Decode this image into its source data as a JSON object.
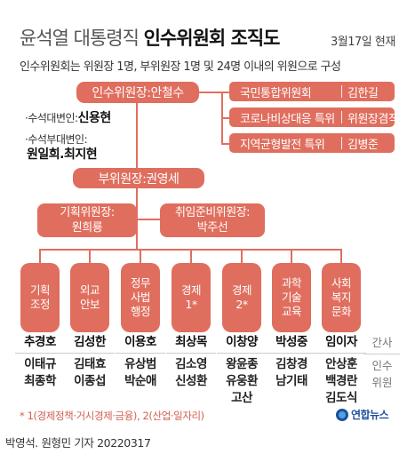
{
  "header": {
    "title_light": "윤석열 대통령직",
    "title_bold": "인수위원회 조직도",
    "date": "3월17일 현재",
    "subtitle": "인수위원회는 위원장 1명, 부위원장 1명 및 24명 이내의 위원으로 구성"
  },
  "chairman": "인수위원장:안철수",
  "side_committees": [
    {
      "name": "국민통합위원회",
      "head": "김한길"
    },
    {
      "name": "코로나비상대응 특위",
      "head": "위원장겸직"
    },
    {
      "name": "지역균형발전 특위",
      "head": "김병준"
    }
  ],
  "spokespersons": {
    "chief_label": "수석대변인:",
    "chief_name": "신용현",
    "deputy_label": "수석부대변인:",
    "deputy_names": "원일희.최지현"
  },
  "vice_chairman": "부위원장:권영세",
  "sub_committees": [
    {
      "line1": "기획위원장:",
      "line2": "원희룡"
    },
    {
      "line1": "취임준비위원장:",
      "line2": "박주선"
    }
  ],
  "divisions": [
    {
      "label": [
        "기획",
        "조정"
      ],
      "lead": "추경호",
      "members": [
        "이태규",
        "최종학"
      ]
    },
    {
      "label": [
        "외교",
        "안보"
      ],
      "lead": "김성한",
      "members": [
        "김태효",
        "이종섭"
      ]
    },
    {
      "label": [
        "정무",
        "사법",
        "행정"
      ],
      "lead": "이용호",
      "members": [
        "유상범",
        "박순애"
      ]
    },
    {
      "label": [
        "경제",
        "1*"
      ],
      "lead": "최상목",
      "members": [
        "김소영",
        "신성환"
      ]
    },
    {
      "label": [
        "경제",
        "2*"
      ],
      "lead": "이창양",
      "members": [
        "왕윤종",
        "유웅환",
        "고산"
      ]
    },
    {
      "label": [
        "과학",
        "기술",
        "교육"
      ],
      "lead": "박성중",
      "members": [
        "김창경",
        "남기태"
      ]
    },
    {
      "label": [
        "사회",
        "복지",
        "문화"
      ],
      "lead": "임이자",
      "members": [
        "안상훈",
        "백경란",
        "김도식"
      ]
    }
  ],
  "legend": {
    "lead": "간사",
    "members": [
      "인수",
      "위원"
    ]
  },
  "note": "* 1(경제정책·거시경제·금융), 2(산업·일자리)",
  "logo_text": "연합뉴스",
  "credit": "박영석. 원형민 기자  20220317",
  "colors": {
    "accent": "#e06e5e",
    "logo": "#1f4e9c"
  }
}
